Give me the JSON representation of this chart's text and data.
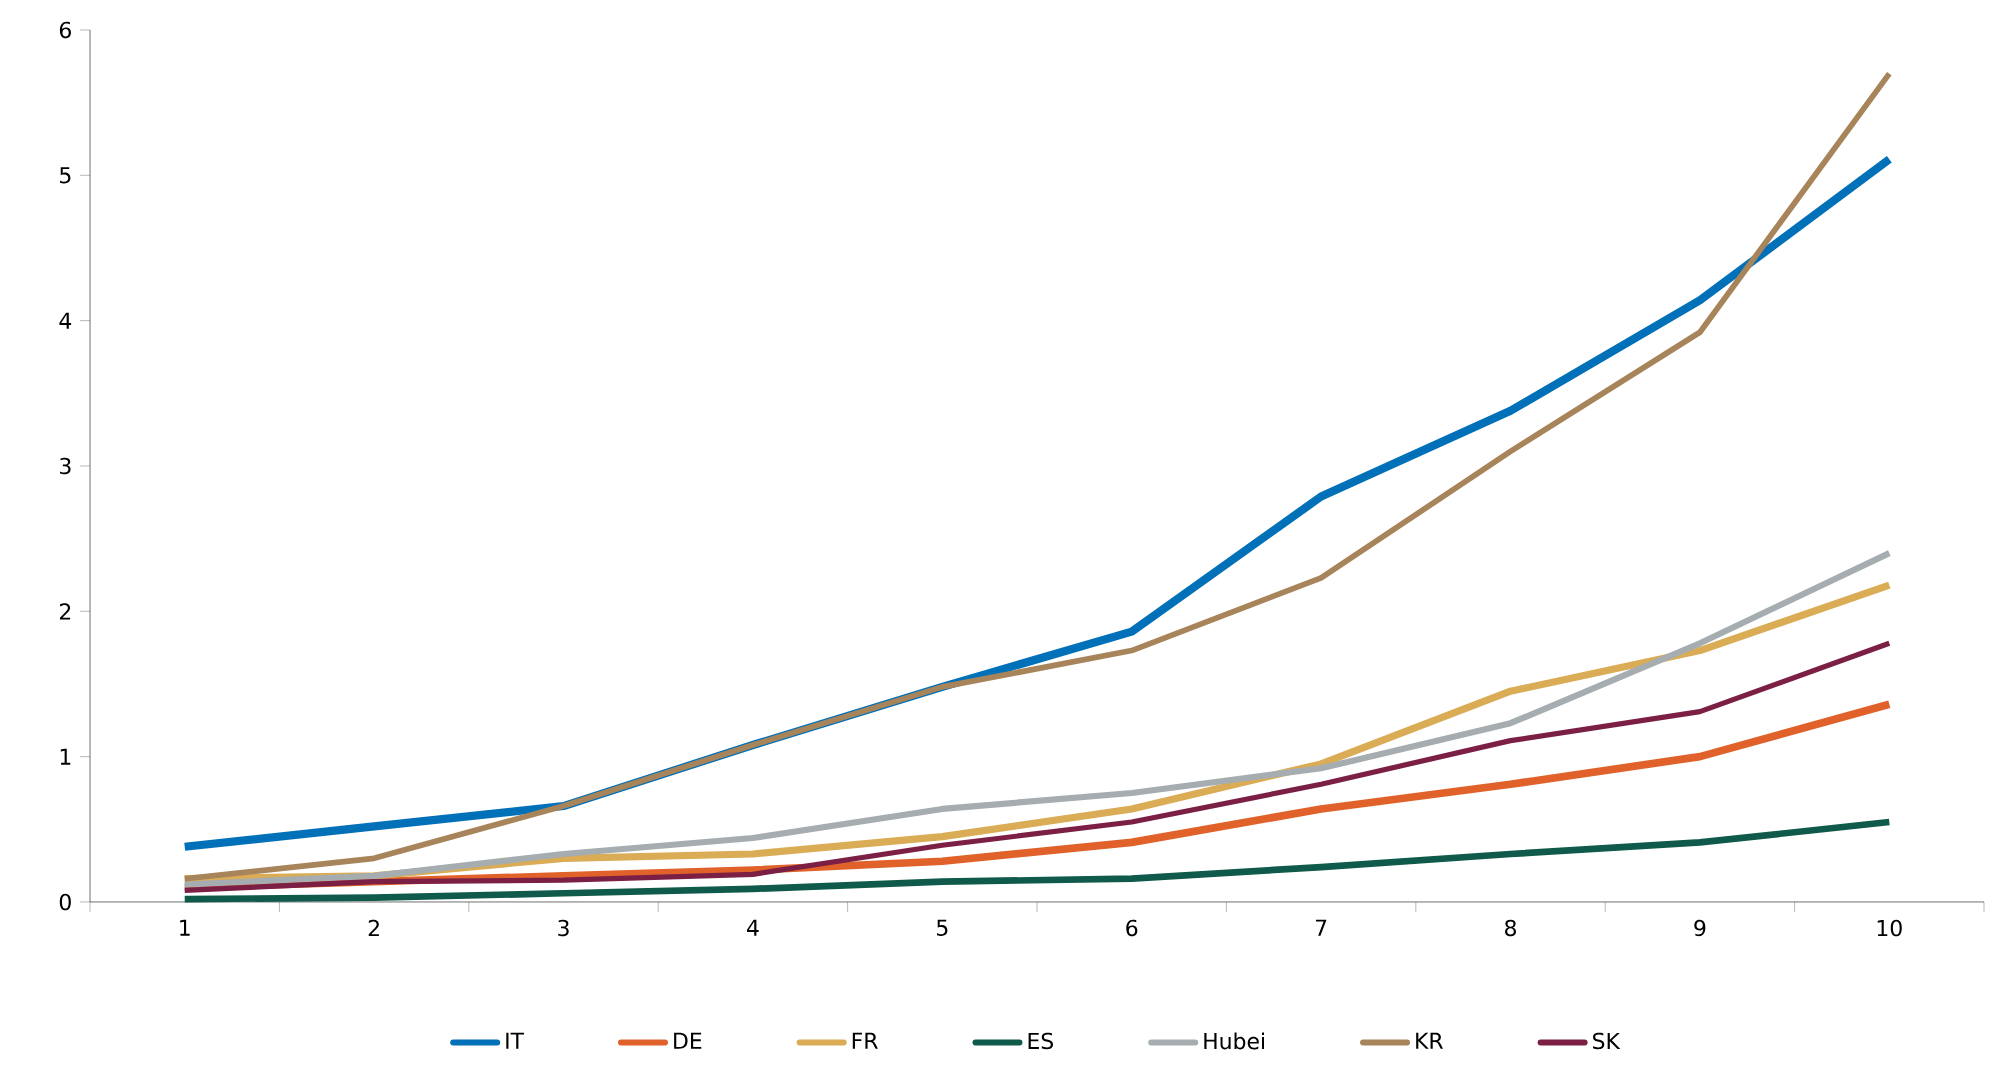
{
  "chart_data": {
    "type": "line",
    "categories": [
      "1",
      "2",
      "3",
      "4",
      "5",
      "6",
      "7",
      "8",
      "9",
      "10"
    ],
    "series": [
      {
        "name": "IT",
        "color": "#0070b8",
        "values": [
          0.38,
          0.52,
          0.66,
          1.08,
          1.48,
          1.86,
          2.79,
          3.38,
          4.14,
          5.11
        ]
      },
      {
        "name": "DE",
        "color": "#e0622a",
        "values": [
          0.1,
          0.14,
          0.18,
          0.22,
          0.28,
          0.41,
          0.64,
          0.81,
          1.0,
          1.36
        ]
      },
      {
        "name": "FR",
        "color": "#d9ac55",
        "values": [
          0.16,
          0.18,
          0.3,
          0.33,
          0.45,
          0.64,
          0.95,
          1.45,
          1.73,
          2.18
        ]
      },
      {
        "name": "ES",
        "color": "#0f5a4a",
        "values": [
          0.02,
          0.03,
          0.06,
          0.09,
          0.14,
          0.16,
          0.24,
          0.33,
          0.41,
          0.55
        ]
      },
      {
        "name": "Hubei",
        "color": "#a6adb0",
        "values": [
          0.12,
          0.18,
          0.33,
          0.44,
          0.64,
          0.75,
          0.92,
          1.23,
          1.78,
          2.4
        ]
      },
      {
        "name": "KR",
        "color": "#a8845a",
        "values": [
          0.16,
          0.3,
          0.66,
          1.08,
          1.48,
          1.73,
          2.23,
          3.1,
          3.92,
          5.7
        ]
      },
      {
        "name": "SK",
        "color": "#7b1f45",
        "values": [
          0.08,
          0.14,
          0.15,
          0.19,
          0.39,
          0.55,
          0.81,
          1.11,
          1.31,
          1.78
        ]
      }
    ],
    "ylim": [
      0,
      6
    ],
    "yticks": [
      0,
      1,
      2,
      3,
      4,
      5,
      6
    ],
    "grid": false,
    "legend": "bottom",
    "marker": "none",
    "line_style": "solid"
  }
}
